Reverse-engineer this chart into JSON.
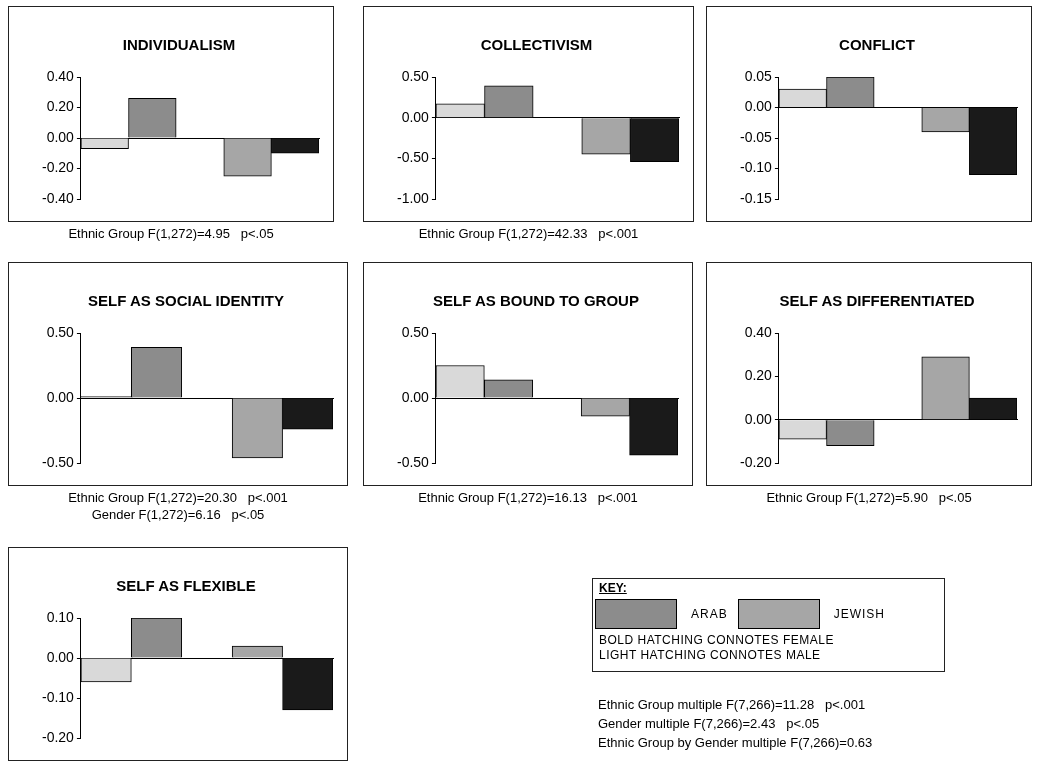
{
  "chart_data": [
    {
      "type": "bar",
      "title": "INDIVIDUALISM",
      "categories": [
        null,
        null,
        null,
        null,
        null
      ],
      "values": [
        -0.07,
        0.26,
        null,
        -0.25,
        -0.1
      ],
      "colors": [
        "#d9d9d9",
        "#8c8c8c",
        "#d9d9d9",
        "#a6a6a6",
        "#1a1a1a"
      ],
      "ylim": [
        -0.4,
        0.4
      ],
      "yticks": [
        {
          "value": -0.4,
          "label": "-0.40"
        },
        {
          "value": -0.2,
          "label": "-0.20"
        },
        {
          "value": 0,
          "label": "0.00"
        },
        {
          "value": 0.2,
          "label": "0.20"
        },
        {
          "value": 0.4,
          "label": "0.40"
        }
      ],
      "tick_labels": "y",
      "annotations": [
        "Ethnic Group F(1,272)=4.95   p<.05"
      ]
    },
    {
      "type": "bar",
      "title": "COLLECTIVISM",
      "categories": [
        null,
        null,
        null,
        null,
        null
      ],
      "values": [
        0.17,
        0.39,
        null,
        -0.45,
        -0.54
      ],
      "colors": [
        "#d9d9d9",
        "#8c8c8c",
        "#d9d9d9",
        "#a6a6a6",
        "#1a1a1a"
      ],
      "ylim": [
        -1,
        0.5
      ],
      "yticks": [
        {
          "value": -1,
          "label": "-1.00"
        },
        {
          "value": -0.5,
          "label": "-0.50"
        },
        {
          "value": 0,
          "label": "0.00"
        },
        {
          "value": 0.5,
          "label": "0.50"
        }
      ],
      "tick_labels": "y",
      "annotations": [
        "Ethnic Group F(1,272)=42.33   p<.001"
      ]
    },
    {
      "type": "bar",
      "title": "CONFLICT",
      "categories": [
        null,
        null,
        null,
        null,
        null
      ],
      "values": [
        0.03,
        0.05,
        null,
        -0.04,
        -0.11
      ],
      "colors": [
        "#d9d9d9",
        "#8c8c8c",
        "#d9d9d9",
        "#a6a6a6",
        "#1a1a1a"
      ],
      "ylim": [
        -0.15,
        0.05
      ],
      "yticks": [
        {
          "value": -0.15,
          "label": "-0.15"
        },
        {
          "value": -0.1,
          "label": "-0.10"
        },
        {
          "value": -0.05,
          "label": "-0.05"
        },
        {
          "value": 0,
          "label": "0.00"
        },
        {
          "value": 0.05,
          "label": "0.05"
        }
      ],
      "tick_labels": "y"
    },
    {
      "type": "bar",
      "title": "SELF AS SOCIAL IDENTITY",
      "categories": [
        null,
        null,
        null,
        null,
        null
      ],
      "values": [
        0.01,
        0.39,
        null,
        -0.46,
        -0.24
      ],
      "colors": [
        "#d9d9d9",
        "#8c8c8c",
        "#d9d9d9",
        "#a6a6a6",
        "#1a1a1a"
      ],
      "ylim": [
        -0.5,
        0.5
      ],
      "yticks": [
        {
          "value": -0.5,
          "label": "-0.50"
        },
        {
          "value": 0,
          "label": "0.00"
        },
        {
          "value": 0.5,
          "label": "0.50"
        }
      ],
      "tick_labels": "y",
      "annotations": [
        "Ethnic Group F(1,272)=20.30   p<.001",
        "Gender F(1,272)=6.16   p<.05"
      ]
    },
    {
      "type": "bar",
      "title": "SELF AS BOUND TO GROUP",
      "categories": [
        null,
        null,
        null,
        null,
        null
      ],
      "values": [
        0.25,
        0.14,
        null,
        -0.14,
        -0.44
      ],
      "colors": [
        "#d9d9d9",
        "#8c8c8c",
        "#d9d9d9",
        "#a6a6a6",
        "#1a1a1a"
      ],
      "ylim": [
        -0.5,
        0.5
      ],
      "yticks": [
        {
          "value": -0.5,
          "label": "-0.50"
        },
        {
          "value": 0,
          "label": "0.00"
        },
        {
          "value": 0.5,
          "label": "0.50"
        }
      ],
      "tick_labels": "y",
      "annotations": [
        "Ethnic Group F(1,272)=16.13   p<.001"
      ]
    },
    {
      "type": "bar",
      "title": "SELF AS DIFFERENTIATED",
      "categories": [
        null,
        null,
        null,
        null,
        null
      ],
      "values": [
        -0.09,
        -0.12,
        null,
        0.29,
        0.1
      ],
      "colors": [
        "#d9d9d9",
        "#8c8c8c",
        "#d9d9d9",
        "#a6a6a6",
        "#1a1a1a"
      ],
      "ylim": [
        -0.2,
        0.4
      ],
      "yticks": [
        {
          "value": -0.2,
          "label": "-0.20"
        },
        {
          "value": 0,
          "label": "0.00"
        },
        {
          "value": 0.2,
          "label": "0.20"
        },
        {
          "value": 0.4,
          "label": "0.40"
        }
      ],
      "tick_labels": "y",
      "annotations": [
        "Ethnic Group F(1,272)=5.90   p<.05"
      ]
    },
    {
      "type": "bar",
      "title": "SELF AS FLEXIBLE",
      "categories": [
        null,
        null,
        null,
        null,
        null
      ],
      "values": [
        -0.06,
        0.1,
        null,
        0.03,
        -0.13
      ],
      "colors": [
        "#d9d9d9",
        "#8c8c8c",
        "#d9d9d9",
        "#a6a6a6",
        "#1a1a1a"
      ],
      "ylim": [
        -0.2,
        0.1
      ],
      "yticks": [
        {
          "value": -0.2,
          "label": "-0.20"
        },
        {
          "value": -0.1,
          "label": "-0.10"
        },
        {
          "value": 0,
          "label": "0.00"
        },
        {
          "value": 0.1,
          "label": "0.10"
        }
      ],
      "tick_labels": "y"
    },
    {
      "type": "other",
      "title": "KEY:",
      "annotations": [
        "ARAB",
        "JEWISH",
        "BOLD HATCHING CONNOTES FEMALE",
        "LIGHT HATCHING CONNOTES MALE"
      ]
    },
    {
      "type": "other",
      "annotations": [
        "Ethnic Group multiple F(7,266)=11.28   p<.001",
        "Gender multiple F(7,266)=2.43   p<.05",
        "Ethnic Group by Gender multiple F(7,266)=0.63"
      ]
    }
  ]
}
